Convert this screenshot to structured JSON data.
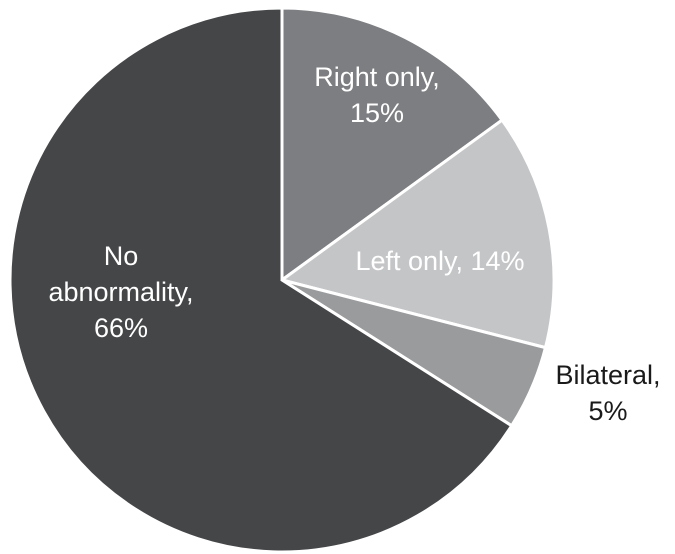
{
  "chart_data": {
    "type": "pie",
    "slices": [
      {
        "name": "Right only",
        "value": 15,
        "label_lines": [
          "Right only,",
          "15%"
        ],
        "color": "#7d7e81",
        "label_color": "#ffffff"
      },
      {
        "name": "Left only",
        "value": 14,
        "label_lines": [
          "Left only, 14%"
        ],
        "color": "#c4c5c7",
        "label_color": "#ffffff"
      },
      {
        "name": "Bilateral",
        "value": 5,
        "label_lines": [
          "Bilateral,",
          "5%"
        ],
        "color": "#9a9b9d",
        "label_color": "#1a1a1a"
      },
      {
        "name": "No abnormality",
        "value": 66,
        "label_lines": [
          "No",
          "abnormality,",
          "66%"
        ],
        "color": "#454648",
        "label_color": "#ffffff"
      }
    ],
    "start_angle_deg": 0,
    "direction": "clockwise",
    "legend": "none"
  }
}
